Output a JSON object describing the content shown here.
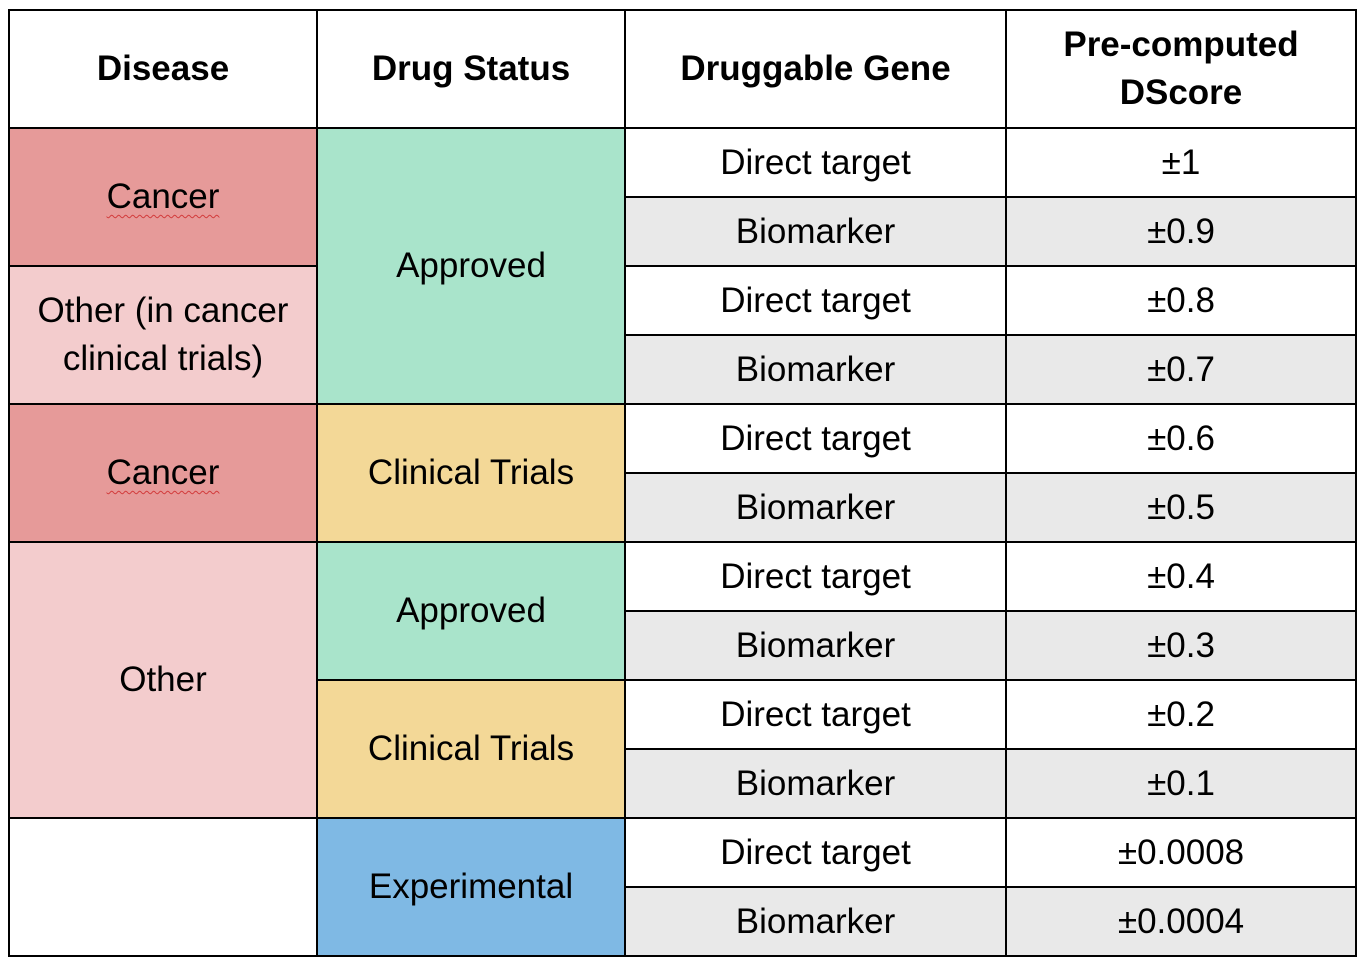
{
  "headers": {
    "disease": "Disease",
    "drug_status": "Drug Status",
    "druggable_gene": "Druggable Gene",
    "dscore_line1": "Pre-computed",
    "dscore_line2": "DScore"
  },
  "disease_groups": {
    "g1": "Cancer",
    "g2_line1": "Other (in cancer",
    "g2_line2": "clinical trials)",
    "g3": "Cancer",
    "g4": "Other",
    "g5": ""
  },
  "status_groups": {
    "s1": "Approved",
    "s2": "Clinical Trials",
    "s3": "Approved",
    "s4": "Clinical Trials",
    "s5": "Experimental"
  },
  "rows": [
    {
      "gene": "Direct target",
      "score": "±1"
    },
    {
      "gene": "Biomarker",
      "score": "±0.9"
    },
    {
      "gene": "Direct target",
      "score": "±0.8"
    },
    {
      "gene": "Biomarker",
      "score": "±0.7"
    },
    {
      "gene": "Direct target",
      "score": "±0.6"
    },
    {
      "gene": "Biomarker",
      "score": "±0.5"
    },
    {
      "gene": "Direct target",
      "score": "±0.4"
    },
    {
      "gene": "Biomarker",
      "score": "±0.3"
    },
    {
      "gene": "Direct target",
      "score": "±0.2"
    },
    {
      "gene": "Biomarker",
      "score": "±0.1"
    },
    {
      "gene": "Direct target",
      "score": "±0.0008"
    },
    {
      "gene": "Biomarker",
      "score": "±0.0004"
    }
  ],
  "colors": {
    "cancer": "#e69a99",
    "other": "#f3cccd",
    "approved": "#a9e4cb",
    "clinical_trials": "#f3d897",
    "experimental": "#7fb9e4",
    "row_shade": "#e9e9e9"
  }
}
